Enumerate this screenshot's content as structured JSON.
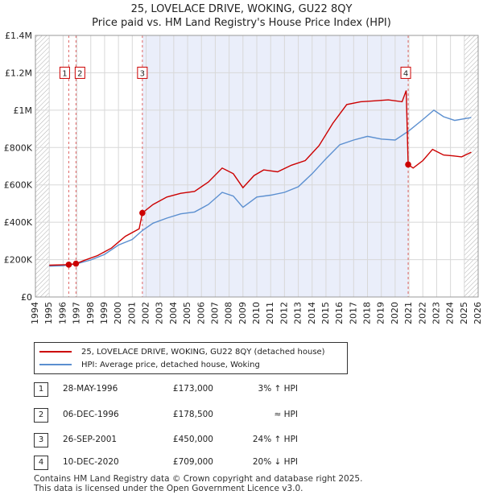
{
  "title_line1": "25, LOVELACE DRIVE, WOKING, GU22 8QY",
  "title_line2": "Price paid vs. HM Land Registry's House Price Index (HPI)",
  "chart_data": {
    "type": "line",
    "xlim": [
      1994,
      2026
    ],
    "ylim": [
      0,
      1400000
    ],
    "x_ticks": [
      1994,
      1995,
      1996,
      1997,
      1998,
      1999,
      2000,
      2001,
      2002,
      2003,
      2004,
      2005,
      2006,
      2007,
      2008,
      2009,
      2010,
      2011,
      2012,
      2013,
      2014,
      2015,
      2016,
      2017,
      2018,
      2019,
      2020,
      2021,
      2022,
      2023,
      2024,
      2025,
      2026
    ],
    "y_ticks": [
      0,
      200000,
      400000,
      600000,
      800000,
      1000000,
      1200000,
      1400000
    ],
    "y_tick_labels": [
      "£0",
      "£200K",
      "£400K",
      "£600K",
      "£800K",
      "£1M",
      "£1.2M",
      "£1.4M"
    ],
    "shaded_span": [
      2001.73,
      2020.94
    ],
    "hatched_before": 1995.0,
    "hatched_after": 2025.0,
    "series": [
      {
        "name": "25, LOVELACE DRIVE, WOKING, GU22 8QY (detached house)",
        "color": "#cc0000",
        "points": [
          [
            1995.0,
            170000
          ],
          [
            1996.4,
            173000
          ],
          [
            1996.93,
            178500
          ],
          [
            1997.5,
            195000
          ],
          [
            1998.5,
            222000
          ],
          [
            1999.5,
            262000
          ],
          [
            2000.5,
            325000
          ],
          [
            2001.5,
            365000
          ],
          [
            2001.73,
            450000
          ],
          [
            2002.5,
            495000
          ],
          [
            2003.5,
            535000
          ],
          [
            2004.5,
            555000
          ],
          [
            2005.5,
            565000
          ],
          [
            2006.5,
            615000
          ],
          [
            2007.5,
            690000
          ],
          [
            2008.3,
            660000
          ],
          [
            2009.0,
            585000
          ],
          [
            2009.8,
            650000
          ],
          [
            2010.5,
            680000
          ],
          [
            2011.5,
            670000
          ],
          [
            2012.5,
            705000
          ],
          [
            2013.5,
            730000
          ],
          [
            2014.5,
            810000
          ],
          [
            2015.5,
            930000
          ],
          [
            2016.5,
            1030000
          ],
          [
            2017.5,
            1045000
          ],
          [
            2018.5,
            1050000
          ],
          [
            2019.5,
            1055000
          ],
          [
            2020.5,
            1045000
          ],
          [
            2020.8,
            1105000
          ],
          [
            2020.94,
            709000
          ],
          [
            2021.3,
            690000
          ],
          [
            2022.0,
            730000
          ],
          [
            2022.7,
            790000
          ],
          [
            2023.5,
            760000
          ],
          [
            2024.2,
            755000
          ],
          [
            2024.8,
            750000
          ],
          [
            2025.5,
            775000
          ]
        ]
      },
      {
        "name": "HPI: Average price, detached house, Woking",
        "color": "#5b8fd0",
        "points": [
          [
            1995.0,
            165000
          ],
          [
            1996.0,
            167000
          ],
          [
            1997.0,
            178000
          ],
          [
            1998.0,
            198000
          ],
          [
            1999.0,
            228000
          ],
          [
            2000.0,
            278000
          ],
          [
            2001.0,
            308000
          ],
          [
            2001.73,
            356000
          ],
          [
            2002.5,
            395000
          ],
          [
            2003.5,
            422000
          ],
          [
            2004.5,
            445000
          ],
          [
            2005.5,
            455000
          ],
          [
            2006.5,
            495000
          ],
          [
            2007.5,
            560000
          ],
          [
            2008.3,
            540000
          ],
          [
            2009.0,
            480000
          ],
          [
            2010.0,
            535000
          ],
          [
            2011.0,
            545000
          ],
          [
            2012.0,
            560000
          ],
          [
            2013.0,
            590000
          ],
          [
            2014.0,
            660000
          ],
          [
            2015.0,
            740000
          ],
          [
            2016.0,
            815000
          ],
          [
            2017.0,
            840000
          ],
          [
            2018.0,
            860000
          ],
          [
            2019.0,
            845000
          ],
          [
            2020.0,
            840000
          ],
          [
            2021.0,
            890000
          ],
          [
            2022.0,
            950000
          ],
          [
            2022.8,
            1000000
          ],
          [
            2023.5,
            965000
          ],
          [
            2024.3,
            945000
          ],
          [
            2025.5,
            960000
          ]
        ]
      }
    ],
    "sales": [
      {
        "label": "1",
        "x": 1996.41,
        "price": 173000
      },
      {
        "label": "2",
        "x": 1996.93,
        "price": 178500
      },
      {
        "label": "3",
        "x": 2001.73,
        "price": 450000
      },
      {
        "label": "4",
        "x": 2020.94,
        "price": 709000
      }
    ]
  },
  "legend": {
    "property_label": "25, LOVELACE DRIVE, WOKING, GU22 8QY (detached house)",
    "hpi_label": "HPI: Average price, detached house, Woking"
  },
  "transactions": [
    {
      "num": "1",
      "date": "28-MAY-1996",
      "price": "£173,000",
      "hpi": "3% ↑ HPI"
    },
    {
      "num": "2",
      "date": "06-DEC-1996",
      "price": "£178,500",
      "hpi": "≈ HPI"
    },
    {
      "num": "3",
      "date": "26-SEP-2001",
      "price": "£450,000",
      "hpi": "24% ↑ HPI"
    },
    {
      "num": "4",
      "date": "10-DEC-2020",
      "price": "£709,000",
      "hpi": "20% ↓ HPI"
    }
  ],
  "footer_line1": "Contains HM Land Registry data © Crown copyright and database right 2025.",
  "footer_line2": "This data is licensed under the Open Government Licence v3.0."
}
